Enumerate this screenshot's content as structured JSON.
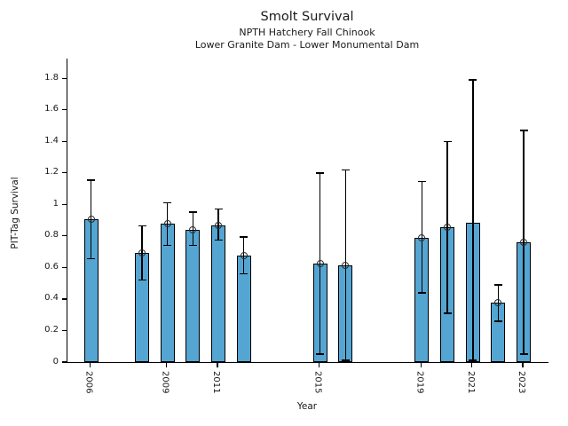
{
  "figure": {
    "title": "Smolt Survival",
    "subtitle_line1": "NPTH Hatchery Fall Chinook",
    "subtitle_line2": "Lower Granite Dam - Lower Monumental Dam"
  },
  "chart_data": {
    "type": "bar",
    "title": "Smolt Survival",
    "subtitle": [
      "NPTH Hatchery Fall Chinook",
      "Lower Granite Dam - Lower Monumental Dam"
    ],
    "xlabel": "Year",
    "ylabel": "PIT-Tag Survival",
    "ylim": [
      0,
      1.925
    ],
    "yticks": [
      0,
      0.2,
      0.4,
      0.6,
      0.8,
      1.0,
      1.2,
      1.4,
      1.6,
      1.8
    ],
    "ytick_labels": [
      "0",
      "0.2",
      "0.4",
      "0.6",
      "0.8",
      "1",
      "1.2",
      "1.4",
      "1.6",
      "1.8"
    ],
    "xticks": [
      2006,
      2009,
      2011,
      2015,
      2019,
      2021,
      2023
    ],
    "grid": false,
    "legend": null,
    "bar_color": "#55A5D2",
    "bar_edge_color": "#000000",
    "error_color": "#000000",
    "marker_style": "open-circle",
    "points": [
      {
        "year": 2006,
        "value": 0.905,
        "ci_low": 0.655,
        "ci_high": 1.155,
        "marker": true
      },
      {
        "year": 2008,
        "value": 0.69,
        "ci_low": 0.52,
        "ci_high": 0.865,
        "marker": true
      },
      {
        "year": 2009,
        "value": 0.88,
        "ci_low": 0.74,
        "ci_high": 1.01,
        "marker": true
      },
      {
        "year": 2010,
        "value": 0.84,
        "ci_low": 0.74,
        "ci_high": 0.95,
        "marker": true
      },
      {
        "year": 2011,
        "value": 0.868,
        "ci_low": 0.775,
        "ci_high": 0.97,
        "marker": true
      },
      {
        "year": 2012,
        "value": 0.678,
        "ci_low": 0.56,
        "ci_high": 0.795,
        "marker": true
      },
      {
        "year": 2015,
        "value": 0.627,
        "ci_low": 0.05,
        "ci_high": 1.2,
        "marker": true
      },
      {
        "year": 2016,
        "value": 0.615,
        "ci_low": 0.01,
        "ci_high": 1.22,
        "marker": true
      },
      {
        "year": 2019,
        "value": 0.79,
        "ci_low": 0.44,
        "ci_high": 1.145,
        "marker": true
      },
      {
        "year": 2020,
        "value": 0.858,
        "ci_low": 0.31,
        "ci_high": 1.4,
        "marker": true
      },
      {
        "year": 2021,
        "value": 0.885,
        "ci_low": 0.01,
        "ci_high": 1.79,
        "marker": false
      },
      {
        "year": 2022,
        "value": 0.375,
        "ci_low": 0.26,
        "ci_high": 0.49,
        "marker": true
      },
      {
        "year": 2023,
        "value": 0.76,
        "ci_low": 0.05,
        "ci_high": 1.47,
        "marker": true
      }
    ]
  }
}
